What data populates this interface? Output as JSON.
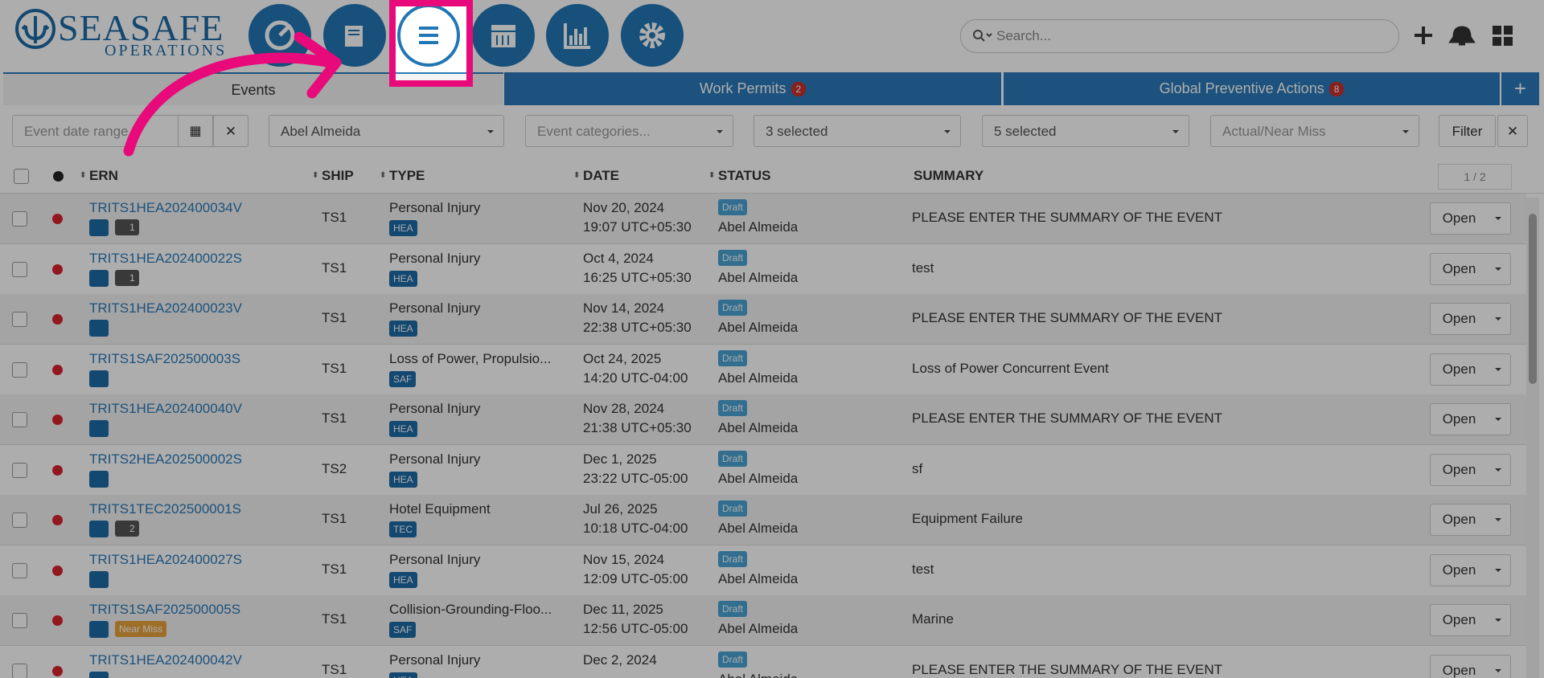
{
  "header": {
    "logo_title": "SEASAFE",
    "logo_subtitle": "OPERATIONS",
    "search_placeholder": "Search..."
  },
  "tabs": [
    {
      "label": "Events"
    },
    {
      "label": "Work Permits",
      "badge": "2"
    },
    {
      "label": "Global Preventive Actions",
      "badge": "8"
    }
  ],
  "filters": [
    "Event date range",
    "Abel Almeida",
    "Event categories...",
    "3 selected",
    "5 selected",
    "Actual/Near Miss"
  ],
  "filter_button": "Filter",
  "table": {
    "headers": [
      "ERN",
      "SHIP",
      "TYPE",
      "DATE",
      "STATUS",
      "SUMMARY"
    ],
    "pagination": "1 / 2",
    "open_label": "Open",
    "rows": [
      {
        "ern": "TRITS1HEA202400034V",
        "comments": "1",
        "ship": "TS1",
        "type": "Personal Injury",
        "type_tag": "HEA",
        "date": "Nov 20, 2024",
        "time": "19:07 UTC+05:30",
        "status": "Draft",
        "owner": "Abel Almeida",
        "summary": "PLEASE ENTER THE SUMMARY OF THE EVENT"
      },
      {
        "ern": "TRITS1HEA202400022S",
        "comments": "1",
        "ship": "TS1",
        "type": "Personal Injury",
        "type_tag": "HEA",
        "date": "Oct 4, 2024",
        "time": "16:25 UTC+05:30",
        "status": "Draft",
        "owner": "Abel Almeida",
        "summary": "test"
      },
      {
        "ern": "TRITS1HEA202400023V",
        "ship": "TS1",
        "type": "Personal Injury",
        "type_tag": "HEA",
        "date": "Nov 14, 2024",
        "time": "22:38 UTC+05:30",
        "status": "Draft",
        "owner": "Abel Almeida",
        "summary": "PLEASE ENTER THE SUMMARY OF THE EVENT"
      },
      {
        "ern": "TRITS1SAF202500003S",
        "ship": "TS1",
        "type": "Loss of Power, Propulsio...",
        "type_tag": "SAF",
        "date": "Oct 24, 2025",
        "time": "14:20 UTC-04:00",
        "status": "Draft",
        "owner": "Abel Almeida",
        "summary": "Loss of Power Concurrent Event"
      },
      {
        "ern": "TRITS1HEA202400040V",
        "ship": "TS1",
        "type": "Personal Injury",
        "type_tag": "HEA",
        "date": "Nov 28, 2024",
        "time": "21:38 UTC+05:30",
        "status": "Draft",
        "owner": "Abel Almeida",
        "summary": "PLEASE ENTER THE SUMMARY OF THE EVENT"
      },
      {
        "ern": "TRITS2HEA202500002S",
        "ship": "TS2",
        "type": "Personal Injury",
        "type_tag": "HEA",
        "date": "Dec 1, 2025",
        "time": "23:22 UTC-05:00",
        "status": "Draft",
        "owner": "Abel Almeida",
        "summary": "sf"
      },
      {
        "ern": "TRITS1TEC202500001S",
        "comments": "2",
        "ship": "TS1",
        "type": "Hotel Equipment",
        "type_tag": "TEC",
        "date": "Jul 26, 2025",
        "time": "10:18 UTC-04:00",
        "status": "Draft",
        "owner": "Abel Almeida",
        "summary": "Equipment Failure"
      },
      {
        "ern": "TRITS1HEA202400027S",
        "ship": "TS1",
        "type": "Personal Injury",
        "type_tag": "HEA",
        "date": "Nov 15, 2024",
        "time": "12:09 UTC-05:00",
        "status": "Draft",
        "owner": "Abel Almeida",
        "summary": "test"
      },
      {
        "ern": "TRITS1SAF202500005S",
        "near_miss": "Near Miss",
        "ship": "TS1",
        "type": "Collision-Grounding-Floo...",
        "type_tag": "SAF",
        "date": "Dec 11, 2025",
        "time": "12:56 UTC-05:00",
        "status": "Draft",
        "owner": "Abel Almeida",
        "summary": "Marine"
      },
      {
        "ern": "TRITS1HEA202400042V",
        "ship": "TS1",
        "type": "Personal Injury",
        "type_tag": "HEA",
        "date": "Dec 2, 2024",
        "status": "Draft",
        "owner": "Abel Almeida",
        "summary": "PLEASE ENTER THE SUMMARY OF THE EVENT"
      }
    ]
  }
}
